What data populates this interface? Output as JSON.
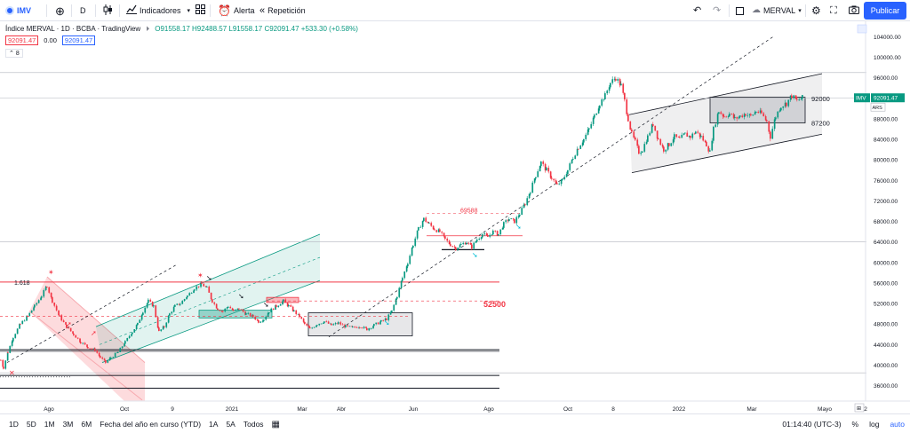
{
  "toolbar": {
    "symbol": "IMV",
    "interval": "D",
    "indicators_label": "Indicadores",
    "alert_label": "Alerta",
    "replay_label": "Repetición",
    "layout_name": "MERVAL",
    "publish_label": "Publicar"
  },
  "legend": {
    "title": "Índice MERVAL · 1D · BCBA · TradingView",
    "ohlc": "O91558.17 H92488.57 L91558.17 C92091.47 +533.30 (+0.58%)",
    "bid": "92091.47",
    "spread": "0.00",
    "ask": "92091.47",
    "indicator_count": "8"
  },
  "axis_badges": {
    "symbol": "IMV",
    "price": "92091.47",
    "currency": "ARS"
  },
  "bottombar": {
    "ranges": [
      "1D",
      "5D",
      "1M",
      "3M",
      "6M",
      "Fecha del año en curso (YTD)",
      "1A",
      "5A",
      "Todos"
    ],
    "clock": "01:14:40 (UTC-3)",
    "percent": "%",
    "log": "log",
    "auto": "auto"
  },
  "chart_data": {
    "type": "candlestick",
    "title": "Índice MERVAL · 1D · BCBA",
    "currency": "ARS",
    "x_ticks": [
      "Ago",
      "Oct",
      "9",
      "2021",
      "Mar",
      "Abr",
      "Jun",
      "Ago",
      "Oct",
      "8",
      "2022",
      "Mar",
      "Mayo",
      "2"
    ],
    "y_ticks": [
      36000,
      40000,
      44000,
      48000,
      52000,
      56000,
      60000,
      64000,
      68000,
      72000,
      76000,
      80000,
      84000,
      88000,
      92000,
      96000,
      100000,
      104000
    ],
    "ylim": [
      33000,
      107000
    ],
    "grid": false,
    "last_price": 92091.47,
    "annotations": [
      {
        "text": "1.618",
        "price": 56200
      },
      {
        "text": "52500",
        "price": 52500
      },
      {
        "text": "69588",
        "price": 69588
      },
      {
        "text": "92000",
        "price": 92000
      },
      {
        "text": "87200",
        "price": 87200
      }
    ],
    "horizontal_levels": [
      56200,
      43000,
      38000,
      35500
    ],
    "close_path": [
      [
        0,
        41000
      ],
      [
        3,
        39500
      ],
      [
        8,
        42500
      ],
      [
        14,
        45500
      ],
      [
        22,
        48000
      ],
      [
        30,
        49500
      ],
      [
        38,
        51500
      ],
      [
        46,
        53500
      ],
      [
        52,
        55500
      ],
      [
        58,
        52500
      ],
      [
        66,
        49500
      ],
      [
        74,
        47500
      ],
      [
        82,
        46000
      ],
      [
        90,
        44500
      ],
      [
        98,
        43500
      ],
      [
        106,
        43000
      ],
      [
        112,
        41500
      ],
      [
        118,
        40500
      ],
      [
        124,
        41500
      ],
      [
        132,
        42500
      ],
      [
        140,
        44500
      ],
      [
        148,
        46500
      ],
      [
        154,
        48000
      ],
      [
        160,
        50500
      ],
      [
        166,
        52500
      ],
      [
        172,
        51500
      ],
      [
        178,
        46500
      ],
      [
        184,
        47500
      ],
      [
        190,
        50000
      ],
      [
        196,
        51500
      ],
      [
        202,
        52000
      ],
      [
        210,
        53500
      ],
      [
        218,
        55000
      ],
      [
        226,
        55800
      ],
      [
        232,
        55000
      ],
      [
        238,
        52500
      ],
      [
        244,
        51000
      ],
      [
        250,
        50500
      ],
      [
        256,
        51500
      ],
      [
        262,
        50500
      ],
      [
        268,
        51000
      ],
      [
        276,
        50000
      ],
      [
        284,
        49500
      ],
      [
        290,
        48500
      ],
      [
        296,
        49000
      ],
      [
        302,
        50500
      ],
      [
        310,
        51500
      ],
      [
        318,
        52500
      ],
      [
        324,
        51500
      ],
      [
        330,
        50500
      ],
      [
        336,
        49500
      ],
      [
        342,
        48000
      ],
      [
        348,
        47000
      ],
      [
        356,
        48000
      ],
      [
        364,
        48500
      ],
      [
        372,
        47800
      ],
      [
        380,
        48200
      ],
      [
        388,
        47500
      ],
      [
        396,
        47300
      ],
      [
        404,
        47600
      ],
      [
        412,
        47000
      ],
      [
        420,
        47800
      ],
      [
        428,
        48500
      ],
      [
        434,
        49000
      ],
      [
        440,
        50500
      ],
      [
        446,
        53500
      ],
      [
        452,
        57000
      ],
      [
        458,
        60000
      ],
      [
        464,
        63500
      ],
      [
        470,
        66500
      ],
      [
        476,
        68500
      ],
      [
        482,
        67500
      ],
      [
        488,
        66500
      ],
      [
        494,
        66000
      ],
      [
        500,
        64500
      ],
      [
        506,
        63500
      ],
      [
        512,
        62800
      ],
      [
        518,
        63500
      ],
      [
        524,
        64000
      ],
      [
        530,
        63000
      ],
      [
        536,
        64500
      ],
      [
        542,
        65500
      ],
      [
        548,
        65000
      ],
      [
        554,
        66000
      ],
      [
        560,
        65500
      ],
      [
        566,
        67500
      ],
      [
        572,
        68500
      ],
      [
        578,
        68000
      ],
      [
        584,
        69500
      ],
      [
        590,
        71500
      ],
      [
        596,
        74000
      ],
      [
        602,
        77000
      ],
      [
        608,
        79500
      ],
      [
        614,
        78000
      ],
      [
        620,
        76500
      ],
      [
        626,
        75000
      ],
      [
        632,
        76000
      ],
      [
        638,
        78000
      ],
      [
        644,
        80500
      ],
      [
        650,
        82500
      ],
      [
        656,
        84000
      ],
      [
        662,
        86000
      ],
      [
        668,
        88500
      ],
      [
        674,
        91000
      ],
      [
        680,
        92500
      ],
      [
        686,
        95000
      ],
      [
        692,
        96000
      ],
      [
        698,
        94500
      ],
      [
        702,
        91500
      ],
      [
        706,
        88000
      ],
      [
        710,
        85000
      ],
      [
        714,
        83500
      ],
      [
        718,
        81500
      ],
      [
        722,
        82000
      ],
      [
        728,
        84500
      ],
      [
        734,
        87000
      ],
      [
        740,
        84000
      ],
      [
        746,
        82000
      ],
      [
        752,
        83000
      ],
      [
        758,
        84500
      ],
      [
        764,
        84000
      ],
      [
        770,
        85000
      ],
      [
        776,
        84500
      ],
      [
        782,
        85500
      ],
      [
        788,
        84500
      ],
      [
        794,
        83000
      ],
      [
        798,
        81500
      ],
      [
        802,
        86000
      ],
      [
        808,
        89500
      ],
      [
        814,
        88500
      ],
      [
        820,
        89000
      ],
      [
        826,
        88000
      ],
      [
        832,
        88500
      ],
      [
        838,
        89000
      ],
      [
        844,
        88500
      ],
      [
        850,
        89500
      ],
      [
        856,
        89000
      ],
      [
        862,
        87500
      ],
      [
        866,
        84500
      ],
      [
        872,
        88500
      ],
      [
        878,
        90500
      ],
      [
        884,
        91000
      ],
      [
        890,
        92500
      ],
      [
        896,
        91500
      ],
      [
        902,
        92091
      ]
    ]
  }
}
